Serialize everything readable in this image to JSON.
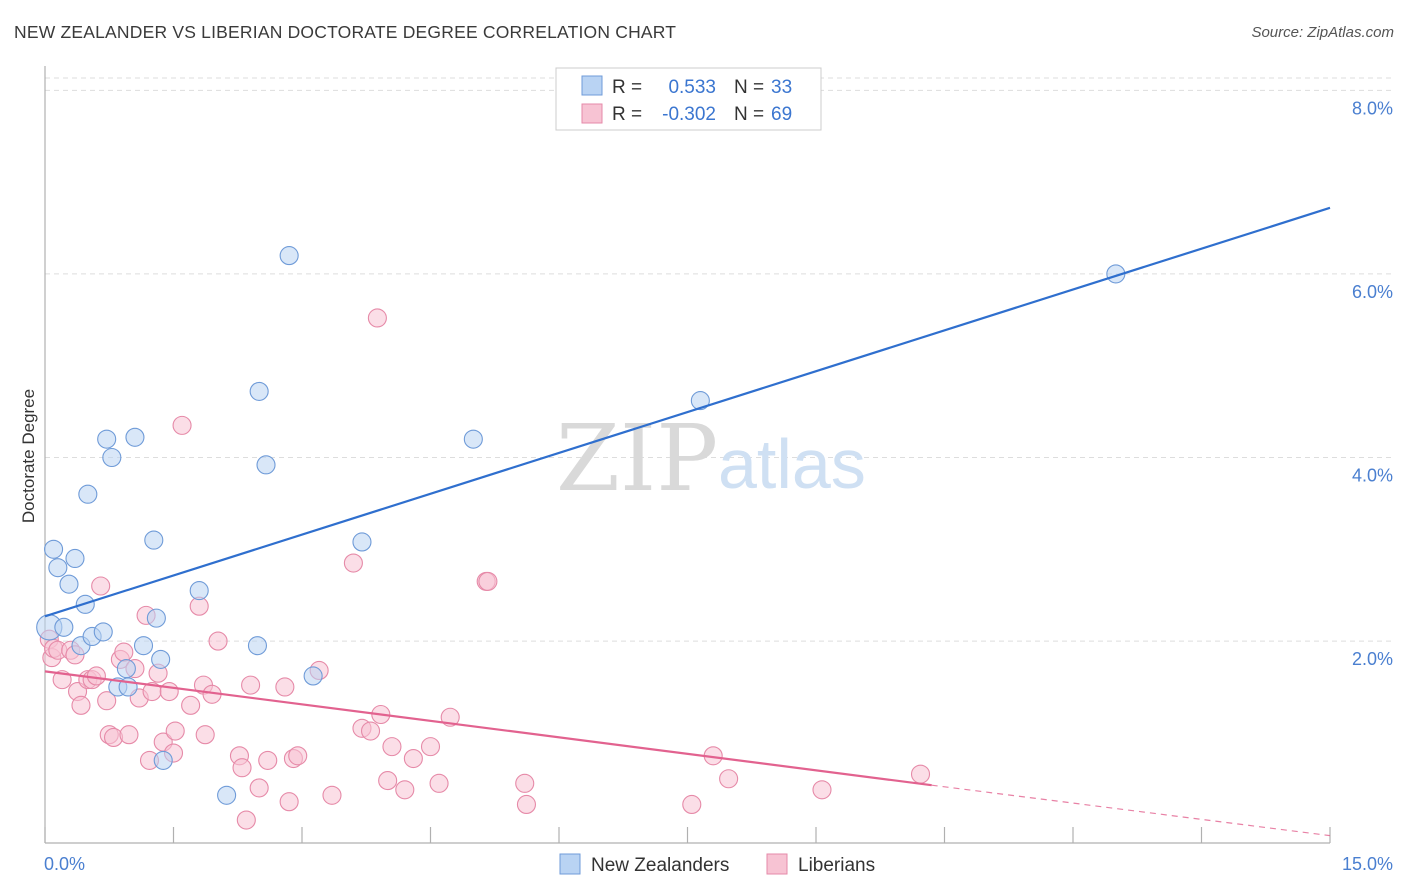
{
  "title": "NEW ZEALANDER VS LIBERIAN DOCTORATE DEGREE CORRELATION CHART",
  "source": "Source: ZipAtlas.com",
  "watermark": {
    "zip": "ZIP",
    "atlas": "atlas"
  },
  "legend": {
    "rows": [
      {
        "r_label": "R =",
        "r_value": "0.533",
        "n_label": "N =",
        "n_value": "33"
      },
      {
        "r_label": "R =",
        "r_value": "-0.302",
        "n_label": "N =",
        "n_value": "69"
      }
    ]
  },
  "bottom_legend": [
    "New Zealanders",
    "Liberians"
  ],
  "colors": {
    "blue_fill": "#b9d3f3",
    "blue_stroke": "#6f9bd8",
    "blue_line": "#2f6fce",
    "pink_fill": "#f7c3d3",
    "pink_stroke": "#e68aa8",
    "pink_line": "#e2628f",
    "grid": "#dddddd",
    "tick_label": "#4a7fd0"
  },
  "chart_data": {
    "type": "scatter",
    "title": "NEW ZEALANDER VS LIBERIAN DOCTORATE DEGREE CORRELATION CHART",
    "ylabel": "Doctorate Degree",
    "xlabel": "",
    "xlim": [
      0,
      15
    ],
    "ylim": [
      -0.2,
      8.2
    ],
    "x_tick_labels": [
      "0.0%",
      "15.0%"
    ],
    "y_tick_values": [
      2,
      4,
      6,
      8
    ],
    "y_tick_labels": [
      "2.0%",
      "4.0%",
      "6.0%",
      "8.0%"
    ],
    "grid": true,
    "series": [
      {
        "name": "New Zealanders",
        "color": "blue",
        "r": 0.533,
        "n": 33,
        "points": [
          [
            0.05,
            2.15,
            14
          ],
          [
            0.1,
            3.0,
            10
          ],
          [
            0.15,
            2.8,
            10
          ],
          [
            0.22,
            2.15,
            10
          ],
          [
            0.28,
            2.62,
            10
          ],
          [
            0.35,
            2.9,
            10
          ],
          [
            0.42,
            1.95,
            10
          ],
          [
            0.47,
            2.4,
            10
          ],
          [
            0.5,
            3.6,
            10
          ],
          [
            0.55,
            2.05,
            10
          ],
          [
            0.68,
            2.1,
            10
          ],
          [
            0.72,
            4.2,
            10
          ],
          [
            0.78,
            4.0,
            10
          ],
          [
            0.85,
            1.5,
            10
          ],
          [
            0.95,
            1.7,
            10
          ],
          [
            0.97,
            1.5,
            10
          ],
          [
            1.05,
            4.22,
            10
          ],
          [
            1.15,
            1.95,
            10
          ],
          [
            1.27,
            3.1,
            10
          ],
          [
            1.3,
            2.25,
            10
          ],
          [
            1.35,
            1.8,
            10
          ],
          [
            1.38,
            0.7,
            10
          ],
          [
            1.8,
            2.55,
            10
          ],
          [
            2.12,
            0.32,
            10
          ],
          [
            2.48,
            1.95,
            10
          ],
          [
            2.5,
            4.72,
            10
          ],
          [
            2.58,
            3.92,
            10
          ],
          [
            2.85,
            6.2,
            10
          ],
          [
            3.13,
            1.62,
            10
          ],
          [
            3.7,
            3.08,
            10
          ],
          [
            5.0,
            4.2,
            10
          ],
          [
            7.65,
            4.62,
            10
          ],
          [
            12.5,
            6.0,
            10
          ]
        ],
        "trend": {
          "x0": 0,
          "y0": 2.27,
          "x1": 15,
          "y1": 6.72
        }
      },
      {
        "name": "Liberians",
        "color": "pink",
        "r": -0.302,
        "n": 69,
        "points": [
          [
            0.05,
            2.02,
            10
          ],
          [
            0.08,
            1.82,
            10
          ],
          [
            0.1,
            1.92,
            10
          ],
          [
            0.15,
            1.9,
            10
          ],
          [
            0.2,
            1.58,
            10
          ],
          [
            0.3,
            1.9,
            10
          ],
          [
            0.35,
            1.85,
            10
          ],
          [
            0.38,
            1.45,
            10
          ],
          [
            0.42,
            1.3,
            10
          ],
          [
            0.5,
            1.58,
            10
          ],
          [
            0.55,
            1.58,
            10
          ],
          [
            0.6,
            1.62,
            10
          ],
          [
            0.65,
            2.6,
            10
          ],
          [
            0.72,
            1.35,
            10
          ],
          [
            0.75,
            0.98,
            10
          ],
          [
            0.8,
            0.95,
            10
          ],
          [
            0.88,
            1.8,
            10
          ],
          [
            0.92,
            1.88,
            10
          ],
          [
            0.98,
            0.98,
            10
          ],
          [
            1.05,
            1.7,
            10
          ],
          [
            1.1,
            1.38,
            10
          ],
          [
            1.18,
            2.28,
            10
          ],
          [
            1.22,
            0.7,
            10
          ],
          [
            1.25,
            1.45,
            10
          ],
          [
            1.32,
            1.65,
            10
          ],
          [
            1.38,
            0.9,
            10
          ],
          [
            1.45,
            1.45,
            10
          ],
          [
            1.5,
            0.78,
            10
          ],
          [
            1.52,
            1.02,
            10
          ],
          [
            1.6,
            4.35,
            10
          ],
          [
            1.7,
            1.3,
            10
          ],
          [
            1.8,
            2.38,
            10
          ],
          [
            1.85,
            1.52,
            10
          ],
          [
            1.87,
            0.98,
            10
          ],
          [
            1.95,
            1.42,
            10
          ],
          [
            2.02,
            2.0,
            10
          ],
          [
            2.27,
            0.75,
            10
          ],
          [
            2.3,
            0.62,
            10
          ],
          [
            2.35,
            0.05,
            10
          ],
          [
            2.4,
            1.52,
            10
          ],
          [
            2.5,
            0.4,
            10
          ],
          [
            2.6,
            0.7,
            10
          ],
          [
            2.8,
            1.5,
            10
          ],
          [
            2.85,
            0.25,
            10
          ],
          [
            2.9,
            0.72,
            10
          ],
          [
            2.95,
            0.75,
            10
          ],
          [
            3.2,
            1.68,
            10
          ],
          [
            3.35,
            0.32,
            10
          ],
          [
            3.6,
            2.85,
            10
          ],
          [
            3.7,
            1.05,
            10
          ],
          [
            3.8,
            1.02,
            10
          ],
          [
            3.88,
            5.52,
            10
          ],
          [
            3.92,
            1.2,
            10
          ],
          [
            4.0,
            0.48,
            10
          ],
          [
            4.05,
            0.85,
            10
          ],
          [
            4.2,
            0.38,
            10
          ],
          [
            4.3,
            0.72,
            10
          ],
          [
            4.5,
            0.85,
            10
          ],
          [
            4.6,
            0.45,
            10
          ],
          [
            4.73,
            1.17,
            10
          ],
          [
            5.15,
            2.65,
            10
          ],
          [
            5.17,
            2.65,
            10
          ],
          [
            5.6,
            0.45,
            10
          ],
          [
            5.62,
            0.22,
            10
          ],
          [
            7.55,
            0.22,
            10
          ],
          [
            7.8,
            0.75,
            10
          ],
          [
            7.98,
            0.5,
            10
          ],
          [
            9.07,
            0.38,
            10
          ],
          [
            10.22,
            0.55,
            10
          ]
        ],
        "trend": {
          "x0": 0,
          "y0": 1.67,
          "x1": 10.35,
          "y1": 0.43
        },
        "trend_dashed": {
          "x0": 10.35,
          "y0": 0.43,
          "x1": 15,
          "y1": -0.12
        }
      }
    ]
  }
}
